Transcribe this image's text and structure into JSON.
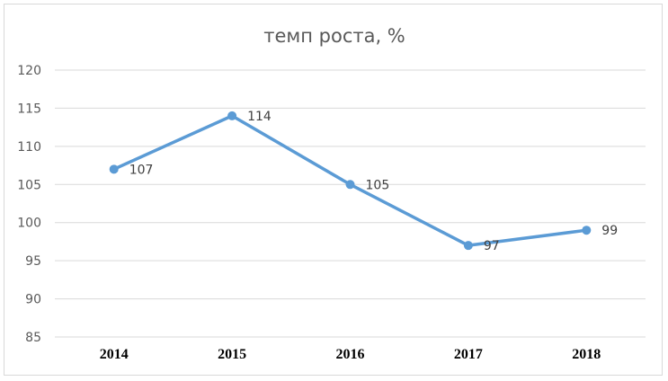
{
  "chart_data": {
    "type": "line",
    "title": "темп роста, %",
    "categories": [
      "2014",
      "2015",
      "2016",
      "2017",
      "2018"
    ],
    "series": [
      {
        "values": [
          107,
          114,
          105,
          97,
          99
        ],
        "color": "#5b9bd5"
      }
    ],
    "data_labels": [
      "107",
      "114",
      "105",
      "97",
      "99"
    ],
    "y_ticks": [
      "85",
      "90",
      "95",
      "100",
      "105",
      "110",
      "115",
      "120"
    ],
    "ylim": [
      85,
      120
    ],
    "grid": true,
    "legend": "none"
  }
}
